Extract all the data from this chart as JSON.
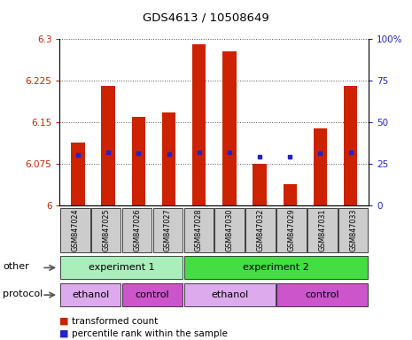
{
  "title": "GDS4613 / 10508649",
  "samples": [
    "GSM847024",
    "GSM847025",
    "GSM847026",
    "GSM847027",
    "GSM847028",
    "GSM847030",
    "GSM847032",
    "GSM847029",
    "GSM847031",
    "GSM847033"
  ],
  "bar_values": [
    6.113,
    6.215,
    6.16,
    6.168,
    6.291,
    6.278,
    6.075,
    6.038,
    6.14,
    6.215
  ],
  "percentile_values": [
    6.091,
    6.096,
    6.095,
    6.093,
    6.096,
    6.096,
    6.088,
    6.088,
    6.095,
    6.096
  ],
  "ymin": 6.0,
  "ymax": 6.3,
  "yticks": [
    6.0,
    6.075,
    6.15,
    6.225,
    6.3
  ],
  "ytick_labels": [
    "6",
    "6.075",
    "6.15",
    "6.225",
    "6.3"
  ],
  "right_yticks": [
    0,
    25,
    50,
    75,
    100
  ],
  "right_ytick_labels": [
    "0",
    "25",
    "50",
    "75",
    "100%"
  ],
  "bar_color": "#cc2200",
  "dot_color": "#2222cc",
  "bar_width": 0.45,
  "grid_color": "#555555",
  "experiment1_color": "#aaeebb",
  "experiment2_color": "#44dd44",
  "ethanol_color": "#ddaaee",
  "control_color": "#cc55cc",
  "sample_bg_color": "#cccccc",
  "axis_color_left": "#cc2200",
  "axis_color_right": "#2222cc",
  "legend_bar_label": "transformed count",
  "legend_dot_label": "percentile rank within the sample",
  "other_label": "other",
  "protocol_label": "protocol"
}
